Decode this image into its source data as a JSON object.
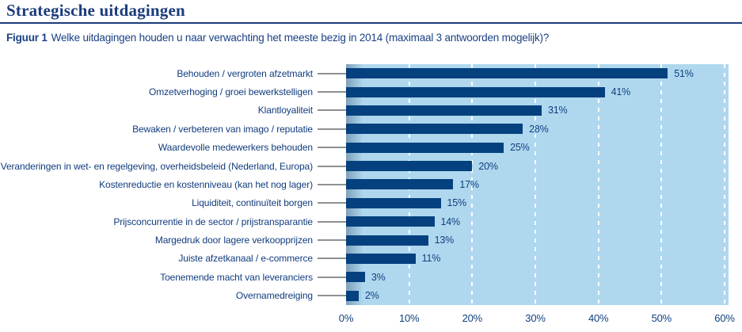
{
  "page": {
    "title": "Strategische uitdagingen",
    "figure_label": "Figuur 1",
    "figure_caption": "Welke uitdagingen houden u naar verwachting het meeste bezig in 2014 (maximaal 3 antwoorden mogelijk)?"
  },
  "chart_data": {
    "type": "bar",
    "orientation": "horizontal",
    "title": "Strategische uitdagingen",
    "caption": "Figuur 1 Welke uitdagingen houden u naar verwachting het meeste bezig in 2014 (maximaal 3 antwoorden mogelijk)?",
    "categories": [
      "Behouden / vergroten afzetmarkt",
      "Omzetverhoging / groei bewerkstelligen",
      "Klantloyaliteit",
      "Bewaken / verbeteren van imago / reputatie",
      "Waardevolle medewerkers behouden",
      "Veranderingen in wet- en regelgeving, overheidsbeleid (Nederland, Europa)",
      "Kostenreductie en kostenniveau (kan het nog lager)",
      "Liquiditeit, continuïteit borgen",
      "Prijsconcurrentie in de sector / prijstransparantie",
      "Margedruk door lagere verkoopprijzen",
      "Juiste afzetkanaal / e-commerce",
      "Toenemende macht van leveranciers",
      "Overnamedreiging"
    ],
    "values": [
      51,
      41,
      31,
      28,
      25,
      20,
      17,
      15,
      14,
      13,
      11,
      3,
      2
    ],
    "value_labels": [
      "51%",
      "41%",
      "31%",
      "28%",
      "25%",
      "20%",
      "17%",
      "15%",
      "14%",
      "13%",
      "11%",
      "3%",
      "2%"
    ],
    "x_ticks": [
      "0%",
      "10%",
      "20%",
      "30%",
      "40%",
      "50%",
      "60%"
    ],
    "xlim": [
      0,
      60
    ],
    "grid": "vertical white dashed lines every 10%",
    "legend": "none",
    "colors": {
      "bar": "#04417e",
      "plot_background": "#afd8ef",
      "text": "#11407f",
      "title": "#1b3b7c",
      "tick_dash": "#8d9194",
      "gridline": "#ffffff"
    }
  }
}
